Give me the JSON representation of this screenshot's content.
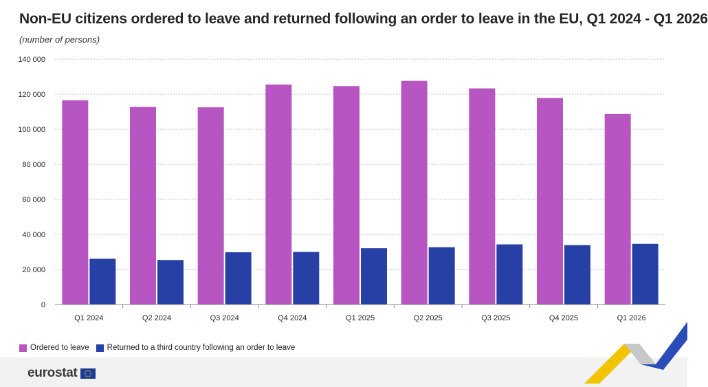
{
  "header": {
    "title": "Non-EU citizens ordered to leave and returned following an order to leave in the EU, Q1 2024 - Q1 2026",
    "subtitle": "(number of persons)"
  },
  "colors": {
    "ordered": "#b756c2",
    "returned": "#2740a6",
    "gridline": "#bfbfbf",
    "axis": "#888888",
    "footer_bg": "#f2f2f2",
    "flag_blue": "#1e3d96",
    "flag_stars": "#ffcc00"
  },
  "chart_data": {
    "type": "bar",
    "categories": [
      "Q1 2024",
      "Q2 2024",
      "Q3 2024",
      "Q4 2024",
      "Q1 2025",
      "Q2 2025",
      "Q3 2025",
      "Q4 2025",
      "Q1 2026"
    ],
    "series": [
      {
        "name": "Ordered to leave",
        "values": [
          116500,
          112700,
          112500,
          125500,
          124600,
          127600,
          123300,
          117800,
          108700
        ]
      },
      {
        "name": "Returned to a third country following an order to leave",
        "values": [
          26100,
          25400,
          29800,
          30000,
          32100,
          32700,
          34300,
          33900,
          34600
        ]
      }
    ],
    "ylim": [
      0,
      140000
    ],
    "yticks": [
      0,
      20000,
      40000,
      60000,
      80000,
      100000,
      120000,
      140000
    ],
    "ytick_labels": [
      "0",
      "20 000",
      "40 000",
      "60 000",
      "80 000",
      "100 000",
      "120 000",
      "140 000"
    ],
    "grid": true,
    "legend_position": "bottom-left"
  },
  "footer": {
    "logo_text": "eurostat",
    "logo_icon": "eu-flag-icon"
  }
}
